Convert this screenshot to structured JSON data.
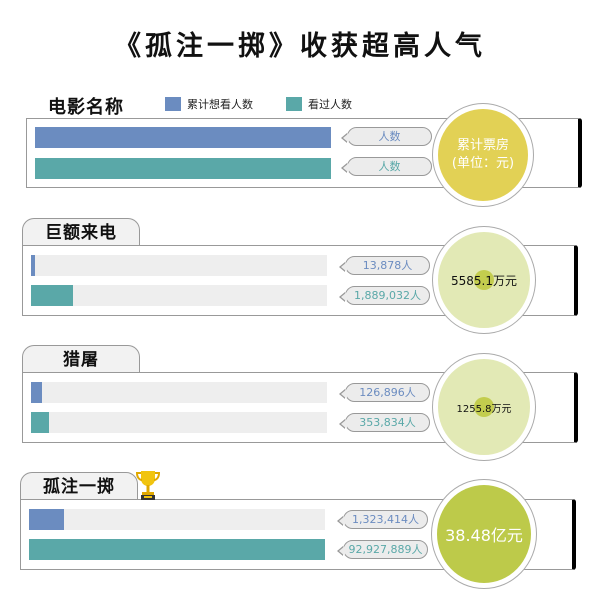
{
  "title": "《孤注一掷》收获超高人气",
  "header": {
    "name_label": "电影名称",
    "unit_label": "人数",
    "box_office_label": "累计票房\n(单位：元)"
  },
  "colors": {
    "want": "#6b8cc0",
    "seen": "#5aa8a8",
    "header_circle": "#e2d155",
    "light_circle": "#e2e9b5",
    "winner_circle": "#bdca4a",
    "track": "#eeeeee"
  },
  "chart_data": {
    "type": "bar",
    "title": "《孤注一掷》收获超高人气",
    "legend": [
      "累计想看人数",
      "看过人数"
    ],
    "legend_placement": "top",
    "series": [
      {
        "name": "累计想看人数",
        "values": [
          13878,
          126896,
          1323414
        ]
      },
      {
        "name": "看过人数",
        "values": [
          1889032,
          353834,
          92927889
        ]
      }
    ],
    "categories": [
      "巨额来电",
      "猎屠",
      "孤注一掷"
    ],
    "labels": {
      "want": [
        "13,878人",
        "126,896人",
        "1,323,414人"
      ],
      "seen": [
        "1,889,032人",
        "353,834人",
        "92,927,889人"
      ],
      "box_office": [
        "5585.1万元",
        "1255.8万元",
        "38.48亿元"
      ]
    },
    "winner": "孤注一掷",
    "winner_icon": "trophy-icon"
  }
}
